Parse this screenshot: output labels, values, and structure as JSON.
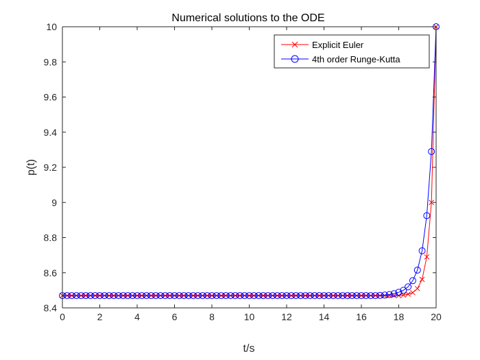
{
  "chart_data": {
    "type": "line",
    "title": "Numerical solutions to the ODE",
    "xlabel": "t/s",
    "ylabel": "p(t)",
    "xlim": [
      0,
      20
    ],
    "ylim": [
      8.4,
      10
    ],
    "xticks": [
      0,
      2,
      4,
      6,
      8,
      10,
      12,
      14,
      16,
      18,
      20
    ],
    "yticks": [
      8.4,
      8.6,
      8.8,
      9,
      9.2,
      9.4,
      9.6,
      9.8,
      10
    ],
    "xtick_labels": [
      "0",
      "2",
      "4",
      "6",
      "8",
      "10",
      "12",
      "14",
      "16",
      "18",
      "20"
    ],
    "ytick_labels": [
      "8.4",
      "8.6",
      "8.8",
      "9",
      "9.2",
      "9.4",
      "9.6",
      "9.8",
      "10"
    ],
    "grid": false,
    "legend_position": "top-right",
    "x": [
      0,
      0.25,
      0.5,
      0.75,
      1,
      1.25,
      1.5,
      1.75,
      2,
      2.25,
      2.5,
      2.75,
      3,
      3.25,
      3.5,
      3.75,
      4,
      4.25,
      4.5,
      4.75,
      5,
      5.25,
      5.5,
      5.75,
      6,
      6.25,
      6.5,
      6.75,
      7,
      7.25,
      7.5,
      7.75,
      8,
      8.25,
      8.5,
      8.75,
      9,
      9.25,
      9.5,
      9.75,
      10,
      10.25,
      10.5,
      10.75,
      11,
      11.25,
      11.5,
      11.75,
      12,
      12.25,
      12.5,
      12.75,
      13,
      13.25,
      13.5,
      13.75,
      14,
      14.25,
      14.5,
      14.75,
      15,
      15.25,
      15.5,
      15.75,
      16,
      16.25,
      16.5,
      16.75,
      17,
      17.25,
      17.5,
      17.75,
      18,
      18.25,
      18.5,
      18.75,
      19,
      19.25,
      19.5,
      19.75,
      20
    ],
    "series": [
      {
        "name": "Explicit Euler",
        "color": "#ff0000",
        "marker": "x",
        "values": [
          8.47,
          8.47,
          8.47,
          8.47,
          8.47,
          8.47,
          8.47,
          8.47,
          8.47,
          8.47,
          8.47,
          8.47,
          8.47,
          8.47,
          8.47,
          8.47,
          8.47,
          8.47,
          8.47,
          8.47,
          8.47,
          8.47,
          8.47,
          8.47,
          8.47,
          8.47,
          8.47,
          8.47,
          8.47,
          8.47,
          8.47,
          8.47,
          8.47,
          8.47,
          8.47,
          8.47,
          8.47,
          8.47,
          8.47,
          8.47,
          8.47,
          8.47,
          8.47,
          8.47,
          8.47,
          8.47,
          8.47,
          8.47,
          8.47,
          8.47,
          8.47,
          8.47,
          8.47,
          8.47,
          8.47,
          8.47,
          8.47,
          8.47,
          8.47,
          8.47,
          8.47,
          8.47,
          8.47,
          8.47,
          8.47,
          8.47,
          8.47,
          8.47,
          8.47,
          8.47,
          8.47,
          8.47,
          8.47,
          8.473,
          8.478,
          8.487,
          8.51,
          8.562,
          8.69,
          9.0,
          10.0
        ]
      },
      {
        "name": "4th order Runge-Kutta",
        "color": "#0000ff",
        "marker": "o",
        "values": [
          8.47,
          8.47,
          8.47,
          8.47,
          8.47,
          8.47,
          8.47,
          8.47,
          8.47,
          8.47,
          8.47,
          8.47,
          8.47,
          8.47,
          8.47,
          8.47,
          8.47,
          8.47,
          8.47,
          8.47,
          8.47,
          8.47,
          8.47,
          8.47,
          8.47,
          8.47,
          8.47,
          8.47,
          8.47,
          8.47,
          8.47,
          8.47,
          8.47,
          8.47,
          8.47,
          8.47,
          8.47,
          8.47,
          8.47,
          8.47,
          8.47,
          8.47,
          8.47,
          8.47,
          8.47,
          8.47,
          8.47,
          8.47,
          8.47,
          8.47,
          8.47,
          8.47,
          8.47,
          8.47,
          8.47,
          8.47,
          8.47,
          8.47,
          8.47,
          8.47,
          8.47,
          8.47,
          8.47,
          8.47,
          8.47,
          8.47,
          8.47,
          8.47,
          8.471,
          8.473,
          8.476,
          8.481,
          8.489,
          8.5,
          8.52,
          8.555,
          8.615,
          8.725,
          8.925,
          9.29,
          10.0
        ]
      }
    ]
  }
}
